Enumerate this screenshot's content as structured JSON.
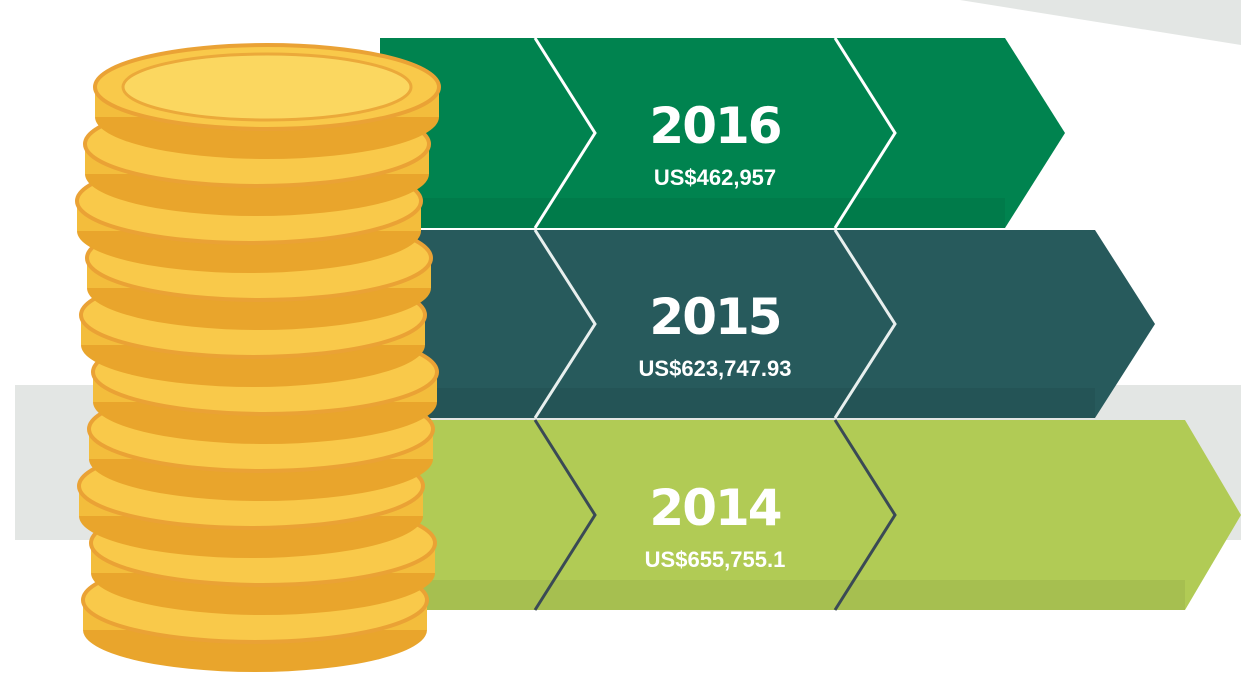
{
  "items": [
    {
      "year": "2016",
      "amount": "US$462,957"
    },
    {
      "year": "2015",
      "amount": "US$623,747.93"
    },
    {
      "year": "2014",
      "amount": "US$655,755.1"
    }
  ]
}
